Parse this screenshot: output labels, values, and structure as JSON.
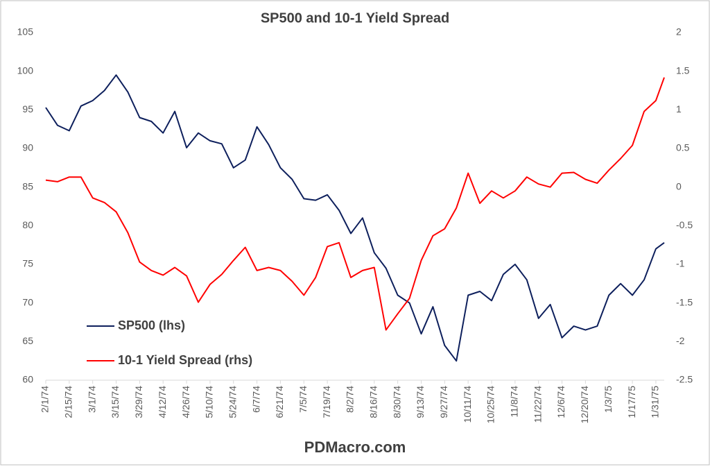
{
  "chart_data": {
    "type": "line",
    "title": "SP500 and 10-1 Yield Spread",
    "footer": "PDMacro.com",
    "x": [
      "2/1/74",
      "2/8/74",
      "2/15/74",
      "2/22/74",
      "3/1/74",
      "3/8/74",
      "3/15/74",
      "3/22/74",
      "3/29/74",
      "4/5/74",
      "4/12/74",
      "4/19/74",
      "4/26/74",
      "5/3/74",
      "5/10/74",
      "5/17/74",
      "5/24/74",
      "5/31/74",
      "6/7/74",
      "6/14/74",
      "6/21/74",
      "6/28/74",
      "7/5/74",
      "7/12/74",
      "7/19/74",
      "7/26/74",
      "8/2/74",
      "8/9/74",
      "8/16/74",
      "8/23/74",
      "8/30/74",
      "9/6/74",
      "9/13/74",
      "9/20/74",
      "9/27/74",
      "10/4/74",
      "10/11/74",
      "10/18/74",
      "10/25/74",
      "11/1/74",
      "11/8/74",
      "11/15/74",
      "11/22/74",
      "11/29/74",
      "12/6/74",
      "12/13/74",
      "12/20/74",
      "12/27/74",
      "1/3/75",
      "1/10/75",
      "1/17/75",
      "1/24/75",
      "1/31/75",
      "2/5/75"
    ],
    "xlim": [
      "2/1/74",
      "2/5/75"
    ],
    "xticks": [
      "2/1/74",
      "2/15/74",
      "3/1/74",
      "3/15/74",
      "3/29/74",
      "4/12/74",
      "4/26/74",
      "5/10/74",
      "5/24/74",
      "6/7/74",
      "6/21/74",
      "7/5/74",
      "7/19/74",
      "8/2/74",
      "8/16/74",
      "8/30/74",
      "9/13/74",
      "9/27/74",
      "10/11/74",
      "10/25/74",
      "11/8/74",
      "11/22/74",
      "12/6/74",
      "12/20/74",
      "1/3/75",
      "1/17/75",
      "1/31/75"
    ],
    "ylim": [
      60,
      105
    ],
    "yticks": [
      60,
      65,
      70,
      75,
      80,
      85,
      90,
      95,
      100,
      105
    ],
    "y2lim": [
      -2.5,
      2
    ],
    "y2ticks": [
      -2.5,
      -2,
      -1.5,
      -1,
      -0.5,
      0,
      0.5,
      1,
      1.5,
      2
    ],
    "legend": "lower left",
    "series": [
      {
        "name": "SP500 (lhs)",
        "color": "#0d1f5c",
        "values": [
          95.3,
          93,
          92.3,
          95.5,
          96.2,
          97.5,
          99.5,
          97.3,
          94,
          93.5,
          92,
          94.8,
          90.1,
          92,
          91,
          90.6,
          87.5,
          88.5,
          92.8,
          90.5,
          87.5,
          86,
          83.5,
          83.3,
          84,
          82,
          79,
          81,
          76.5,
          74.5,
          71,
          70,
          66,
          69.5,
          64.5,
          62.5,
          71,
          71.5,
          70.3,
          73.7,
          75,
          73,
          68,
          69.8,
          65.5,
          67,
          66.5,
          67,
          71,
          72.5,
          71,
          73,
          77,
          77.8
        ]
      },
      {
        "name": "10-1 Yield Spread (rhs)",
        "color": "#ff0000",
        "axis": "y2",
        "values": [
          0.09,
          0.07,
          0.13,
          0.13,
          -0.14,
          -0.2,
          -0.32,
          -0.59,
          -0.97,
          -1.08,
          -1.14,
          -1.04,
          -1.15,
          -1.49,
          -1.26,
          -1.13,
          -0.95,
          -0.78,
          -1.08,
          -1.04,
          -1.08,
          -1.22,
          -1.4,
          -1.17,
          -0.77,
          -0.72,
          -1.17,
          -1.08,
          -1.04,
          -1.85,
          -1.64,
          -1.44,
          -0.95,
          -0.63,
          -0.54,
          -0.27,
          0.18,
          -0.21,
          -0.05,
          -0.14,
          -0.05,
          0.13,
          0.04,
          0,
          0.18,
          0.19,
          0.1,
          0.05,
          0.22,
          0.37,
          0.54,
          0.98,
          1.12,
          1.42
        ]
      }
    ]
  }
}
